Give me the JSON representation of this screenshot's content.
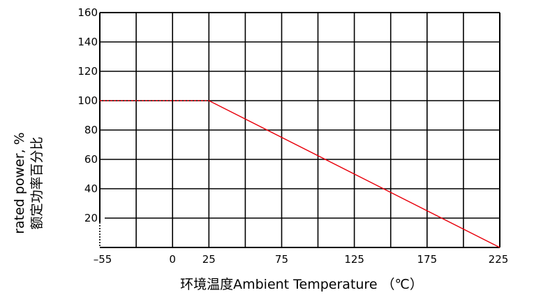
{
  "chart_data": {
    "type": "line",
    "title": "",
    "xlabel": "环境温度Ambient Temperature （℃）",
    "ylabel_lines": [
      "rated power, %",
      "额定功率百分比"
    ],
    "x_tick_labels": [
      "-55",
      "0",
      "25",
      "75",
      "125",
      "175",
      "225"
    ],
    "y_tick_labels": [
      "20",
      "40",
      "60",
      "80",
      "100",
      "120",
      "140",
      "160"
    ],
    "ylim": [
      0,
      160
    ],
    "grid": true,
    "series": [
      {
        "style": "dashed",
        "color": "#e8000b",
        "points": [
          [
            -55,
            100
          ],
          [
            25,
            100
          ]
        ]
      },
      {
        "style": "solid",
        "color": "#e8000b",
        "points": [
          [
            25,
            100
          ],
          [
            225,
            0
          ]
        ]
      }
    ]
  }
}
